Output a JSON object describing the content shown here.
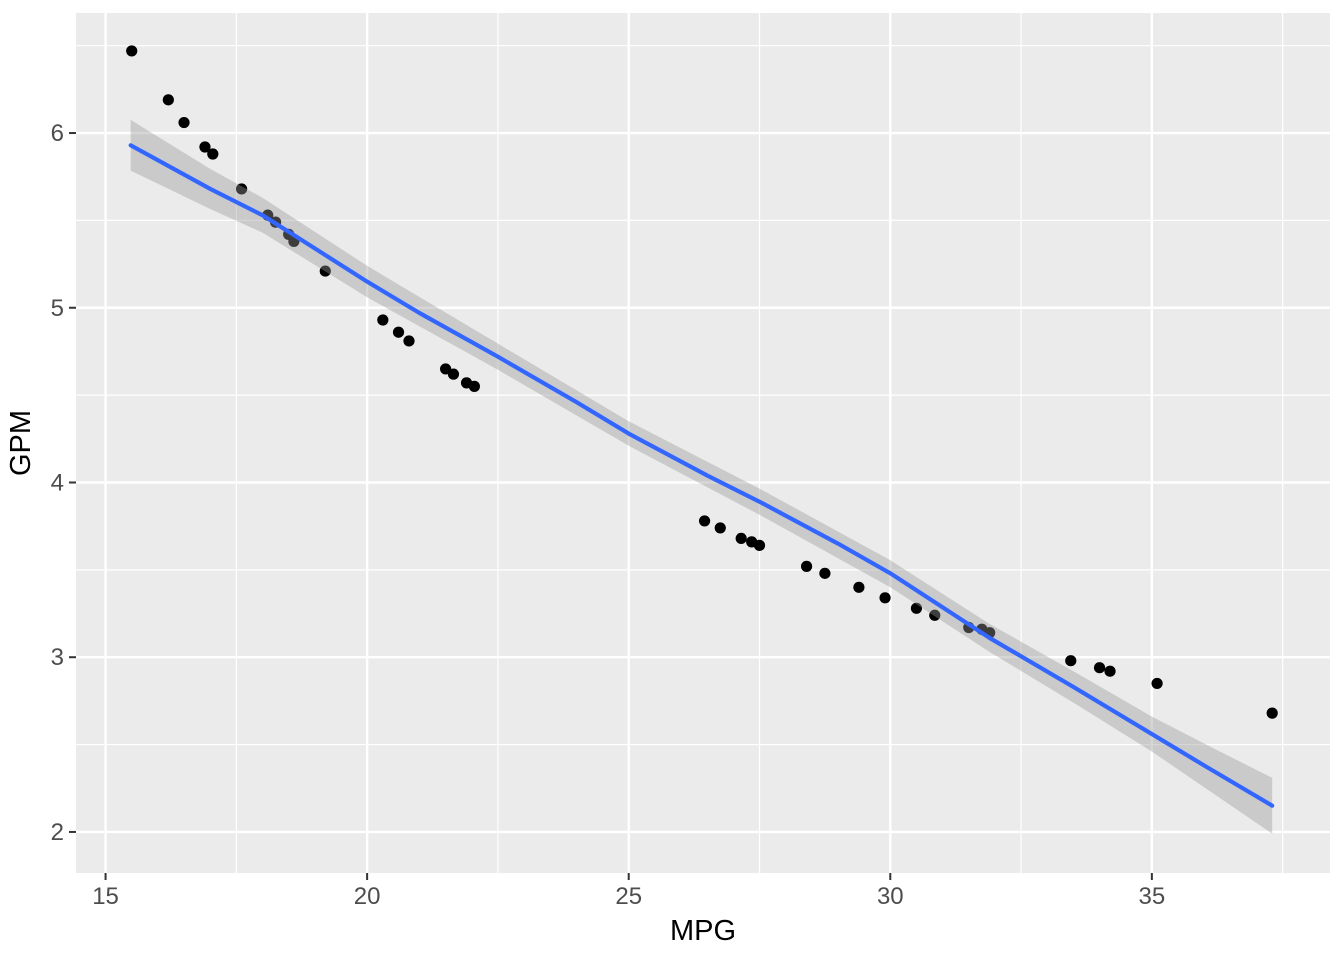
{
  "style": {
    "figure_bg": "#FFFFFF",
    "panel_bg": "#EBEBEB",
    "grid_color": "#FFFFFF",
    "point_color": "#000000",
    "smooth_line_color": "#3366FF",
    "ribbon_color": "#999999",
    "ribbon_opacity": 0.4,
    "tick_mark_color": "#333333",
    "tick_label_color": "#4D4D4D",
    "axis_title_color": "#000000"
  },
  "chart_data": {
    "type": "scatter",
    "title": "",
    "xlabel": "MPG",
    "ylabel": "GPM",
    "xlim": [
      14.435,
      38.405
    ],
    "ylim": [
      1.765,
      6.687
    ],
    "grid": "on",
    "legend_position": "none",
    "x_ticks": [
      15,
      20,
      25,
      30,
      35
    ],
    "x_tick_labels": [
      "15",
      "20",
      "25",
      "30",
      "35"
    ],
    "x_minor_gridlines": [
      17.5,
      22.5,
      27.5,
      32.5,
      37.5
    ],
    "y_ticks": [
      2,
      3,
      4,
      5,
      6
    ],
    "y_tick_labels": [
      "2",
      "3",
      "4",
      "5",
      "6"
    ],
    "y_minor_gridlines": [
      2.5,
      3.5,
      4.5,
      5.5,
      6.5
    ],
    "points": [
      [
        15.5,
        6.47
      ],
      [
        16.2,
        6.19
      ],
      [
        16.5,
        6.06
      ],
      [
        16.9,
        5.92
      ],
      [
        17.05,
        5.88
      ],
      [
        17.6,
        5.68
      ],
      [
        18.1,
        5.53
      ],
      [
        18.25,
        5.49
      ],
      [
        18.5,
        5.42
      ],
      [
        18.6,
        5.38
      ],
      [
        19.2,
        5.21
      ],
      [
        20.3,
        4.93
      ],
      [
        20.6,
        4.86
      ],
      [
        20.8,
        4.81
      ],
      [
        21.5,
        4.65
      ],
      [
        21.65,
        4.62
      ],
      [
        21.9,
        4.57
      ],
      [
        22.05,
        4.55
      ],
      [
        26.45,
        3.78
      ],
      [
        26.75,
        3.74
      ],
      [
        27.15,
        3.68
      ],
      [
        27.35,
        3.66
      ],
      [
        27.5,
        3.64
      ],
      [
        28.4,
        3.52
      ],
      [
        28.75,
        3.48
      ],
      [
        29.4,
        3.4
      ],
      [
        29.9,
        3.34
      ],
      [
        30.5,
        3.28
      ],
      [
        30.85,
        3.24
      ],
      [
        31.5,
        3.17
      ],
      [
        31.75,
        3.16
      ],
      [
        31.9,
        3.14
      ],
      [
        33.45,
        2.98
      ],
      [
        34.0,
        2.94
      ],
      [
        34.2,
        2.92
      ],
      [
        35.1,
        2.85
      ],
      [
        37.3,
        2.68
      ]
    ],
    "smooth_line": [
      [
        15.48,
        5.93
      ],
      [
        17.0,
        5.68
      ],
      [
        18.0,
        5.53
      ],
      [
        19.0,
        5.34
      ],
      [
        20.0,
        5.15
      ],
      [
        21.0,
        4.97
      ],
      [
        22.5,
        4.72
      ],
      [
        24.0,
        4.46
      ],
      [
        25.0,
        4.28
      ],
      [
        26.5,
        4.04
      ],
      [
        27.5,
        3.89
      ],
      [
        29.0,
        3.65
      ],
      [
        30.0,
        3.48
      ],
      [
        31.9,
        3.11
      ],
      [
        33.5,
        2.83
      ],
      [
        35.0,
        2.56
      ],
      [
        36.0,
        2.38
      ],
      [
        37.3,
        2.15
      ]
    ],
    "confidence_band": [
      [
        15.48,
        5.785,
        6.075
      ],
      [
        17.0,
        5.565,
        5.795
      ],
      [
        18.0,
        5.43,
        5.63
      ],
      [
        20.0,
        5.06,
        5.24
      ],
      [
        22.5,
        4.645,
        4.795
      ],
      [
        25.0,
        4.21,
        4.35
      ],
      [
        27.5,
        3.815,
        3.965
      ],
      [
        30.0,
        3.4,
        3.555
      ],
      [
        31.9,
        3.03,
        3.19
      ],
      [
        33.5,
        2.74,
        2.92
      ],
      [
        35.0,
        2.46,
        2.66
      ],
      [
        36.2,
        2.215,
        2.475
      ],
      [
        37.3,
        1.99,
        2.31
      ]
    ]
  }
}
